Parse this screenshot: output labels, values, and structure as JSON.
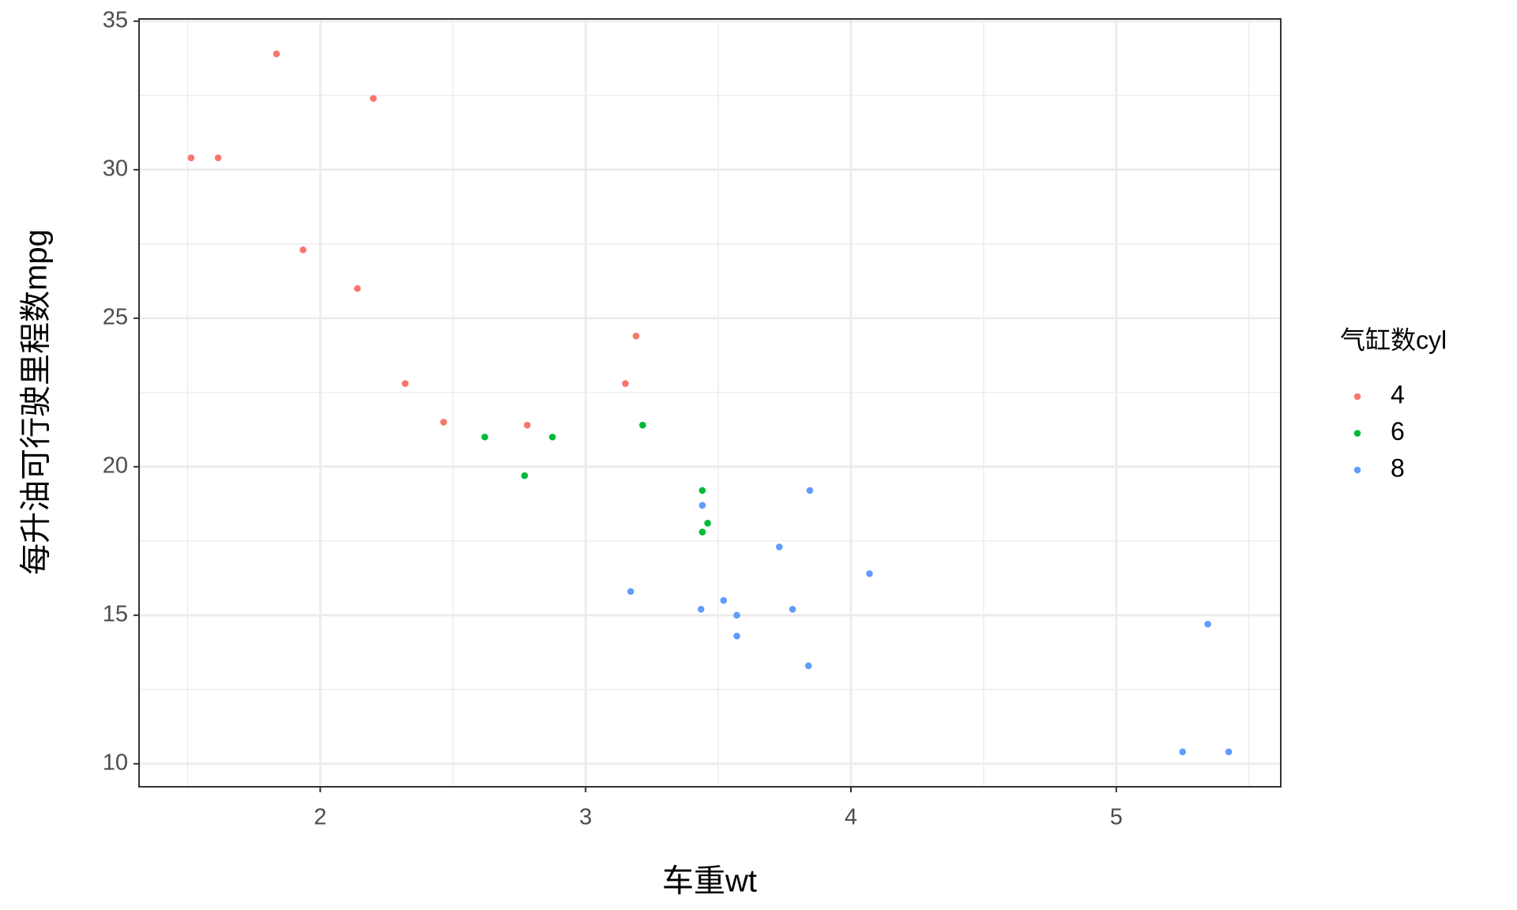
{
  "chart_data": {
    "type": "scatter",
    "x_label": "车重wt",
    "y_label": "每升油可行驶里程数mpg",
    "legend_title": "气缸数cyl",
    "xlim": [
      1.317,
      5.62
    ],
    "ylim": [
      9.225,
      35.075
    ],
    "xticks": [
      2,
      3,
      4,
      5
    ],
    "yticks": [
      10,
      15,
      20,
      25,
      30,
      35
    ],
    "xminor": [
      1.5,
      2.5,
      3.5,
      4.5,
      5.5
    ],
    "yminor": [
      12.5,
      17.5,
      22.5,
      27.5,
      32.5
    ],
    "grid": true,
    "legend": "right",
    "series": [
      {
        "name": "4",
        "color": "#F8766D",
        "x": [
          2.32,
          3.19,
          3.15,
          2.2,
          1.615,
          1.835,
          2.465,
          1.935,
          2.14,
          1.513,
          2.78
        ],
        "values": [
          22.8,
          24.4,
          22.8,
          32.4,
          30.4,
          33.9,
          21.5,
          27.3,
          26.0,
          30.4,
          21.4
        ]
      },
      {
        "name": "6",
        "color": "#00BA38",
        "x": [
          2.62,
          2.875,
          3.215,
          3.46,
          3.44,
          3.44,
          2.77
        ],
        "values": [
          21.0,
          21.0,
          21.4,
          18.1,
          19.2,
          17.8,
          19.7
        ]
      },
      {
        "name": "8",
        "color": "#619CFF",
        "x": [
          3.44,
          3.57,
          4.07,
          3.73,
          3.78,
          5.25,
          5.424,
          5.345,
          3.52,
          3.435,
          3.84,
          3.845,
          3.17,
          3.57
        ],
        "values": [
          18.7,
          14.3,
          16.4,
          17.3,
          15.2,
          10.4,
          10.4,
          14.7,
          15.5,
          15.2,
          13.3,
          19.2,
          15.8,
          15.0
        ]
      }
    ]
  }
}
